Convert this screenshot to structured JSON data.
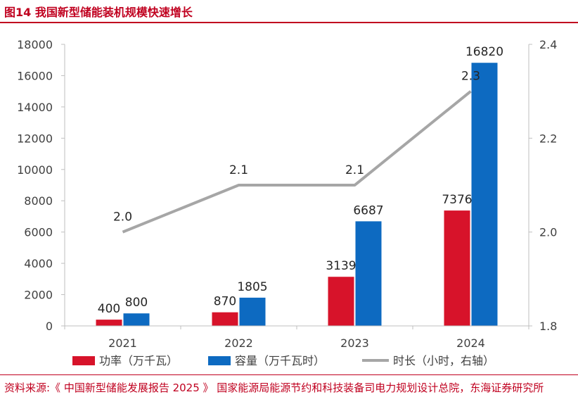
{
  "figure": {
    "title": "图14  我国新型储能装机规模快速增长",
    "source": "资料来源:《 中国新型储能发展报告 2025 》 国家能源局能源节约和科技装备司电力规划设计总院，东海证券研究所"
  },
  "colors": {
    "red": "#d7132a",
    "blue": "#0d6ac1",
    "gray": "#a6a6a6",
    "axis": "#bfbfbf",
    "brand": "#c0001f"
  },
  "chart_data": {
    "type": "bar",
    "title": "我国新型储能装机规模快速增长",
    "categories": [
      "2021",
      "2022",
      "2023",
      "2024"
    ],
    "series": [
      {
        "name": "功率（万千瓦）",
        "kind": "bar",
        "axis": "left",
        "color": "#d7132a",
        "values": [
          400,
          870,
          3139,
          7376
        ]
      },
      {
        "name": "容量（万千瓦时）",
        "kind": "bar",
        "axis": "left",
        "color": "#0d6ac1",
        "values": [
          800,
          1805,
          6687,
          16820
        ]
      },
      {
        "name": "时长（小时，右轴）",
        "kind": "line",
        "axis": "right",
        "color": "#a6a6a6",
        "values": [
          2.0,
          2.1,
          2.1,
          2.3
        ],
        "labels": [
          "2.0",
          "2.1",
          "2.1",
          "2.3"
        ]
      }
    ],
    "y_left": {
      "min": 0,
      "max": 18000,
      "ticks": [
        "0",
        "2000",
        "4000",
        "6000",
        "8000",
        "10000",
        "12000",
        "14000",
        "16000",
        "18000"
      ]
    },
    "y_right": {
      "min": 1.8,
      "max": 2.4,
      "ticks": [
        "1.8",
        "2.0",
        "2.2",
        "2.4"
      ]
    },
    "legend": "bottom"
  }
}
